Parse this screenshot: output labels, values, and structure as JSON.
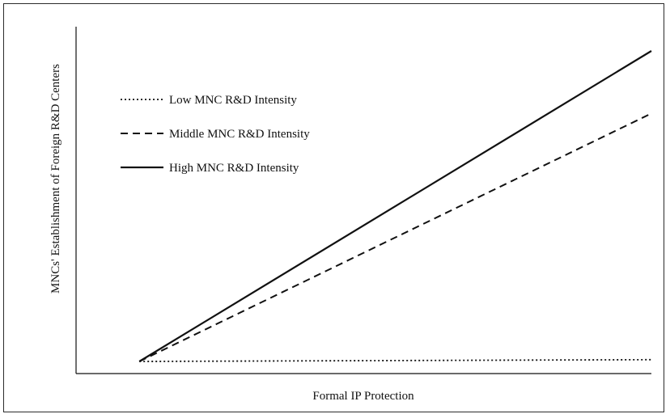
{
  "chart_data": {
    "type": "line",
    "title": "",
    "xlabel": "Formal IP Protection",
    "ylabel": "MNCs' Establishment of Foreign R&D Centers",
    "grid": false,
    "legend_position": "top-left",
    "xlim": [
      0,
      1
    ],
    "ylim": [
      0,
      1
    ],
    "x_ticks_shown": false,
    "y_ticks_shown": false,
    "series": [
      {
        "name": "Low MNC R&D Intensity",
        "style": "dotted",
        "color": "#111111",
        "x": [
          0.11,
          1.0
        ],
        "y": [
          0.035,
          0.04
        ]
      },
      {
        "name": "Middle MNC R&D Intensity",
        "style": "dashed",
        "color": "#111111",
        "x": [
          0.11,
          1.0
        ],
        "y": [
          0.035,
          0.75
        ]
      },
      {
        "name": "High MNC R&D Intensity",
        "style": "solid",
        "color": "#111111",
        "x": [
          0.11,
          1.0
        ],
        "y": [
          0.035,
          0.93
        ]
      }
    ]
  }
}
